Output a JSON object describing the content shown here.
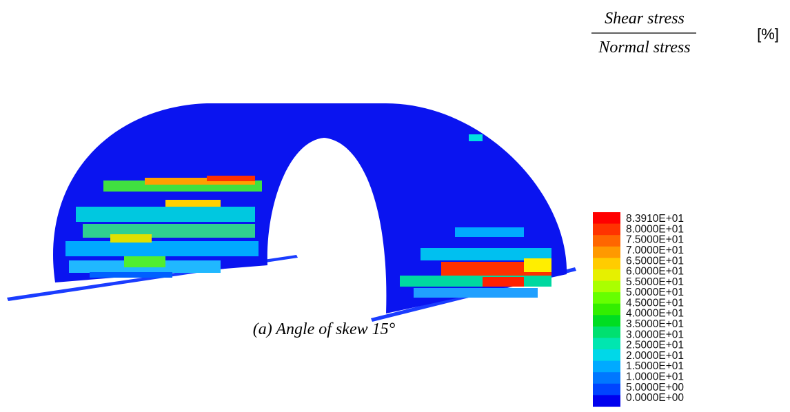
{
  "figure": {
    "caption": "(a) Angle of skew 15°",
    "legend": {
      "title_numerator": "Shear stress",
      "title_denominator": "Normal stress",
      "unit": "[%]",
      "labels": [
        "8.3910E+01",
        "8.0000E+01",
        "7.5000E+01",
        "7.0000E+01",
        "6.5000E+01",
        "6.0000E+01",
        "5.5000E+01",
        "5.0000E+01",
        "4.5000E+01",
        "4.0000E+01",
        "3.5000E+01",
        "3.0000E+01",
        "2.5000E+01",
        "2.0000E+01",
        "1.5000E+01",
        "1.0000E+01",
        "5.0000E+00",
        "0.0000E+00"
      ],
      "colors": [
        "#ff0000",
        "#ff3300",
        "#ff6600",
        "#ff9900",
        "#ffcc00",
        "#e6f000",
        "#aaff00",
        "#66ff00",
        "#33ee00",
        "#00dd22",
        "#00e070",
        "#00e6b0",
        "#00d8e8",
        "#00aaff",
        "#0077ff",
        "#0044ff",
        "#0000ee"
      ]
    }
  }
}
